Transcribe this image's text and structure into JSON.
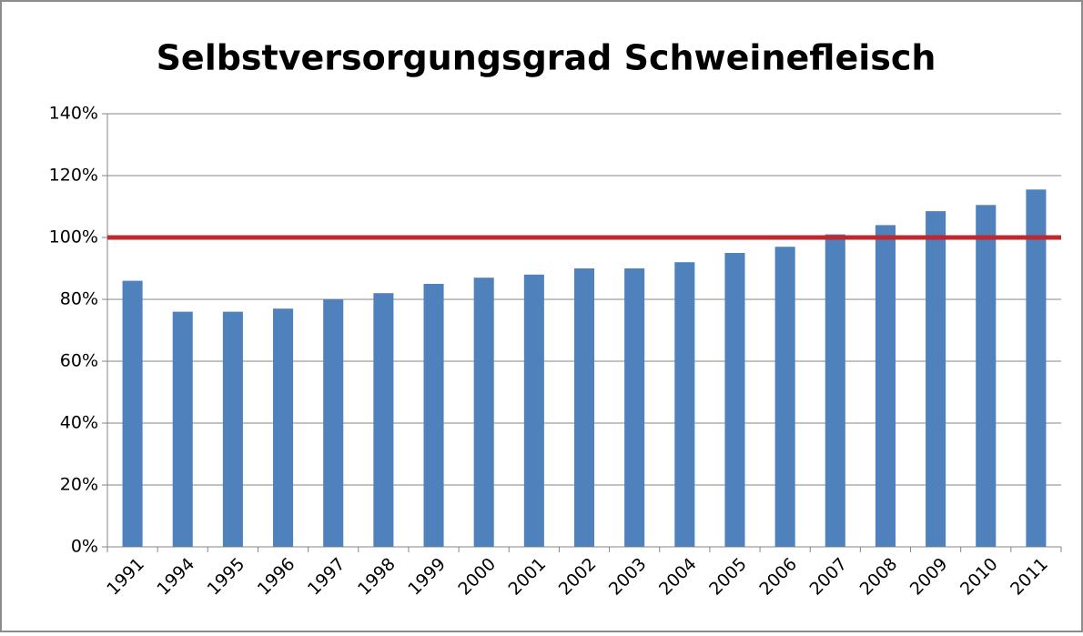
{
  "chart_data": {
    "type": "bar",
    "title": "Selbstversorgungsgrad Schweinefleisch",
    "categories": [
      "1991",
      "1994",
      "1995",
      "1996",
      "1997",
      "1998",
      "1999",
      "2000",
      "2001",
      "2002",
      "2003",
      "2004",
      "2005",
      "2006",
      "2007",
      "2008",
      "2009",
      "2010",
      "2011"
    ],
    "values": [
      86,
      76,
      76,
      77,
      80,
      82,
      85,
      87,
      88,
      90,
      90,
      92,
      95,
      97,
      101,
      104,
      108.5,
      110.5,
      115.5
    ],
    "color": "#4f81bd",
    "ylim": [
      0,
      140
    ],
    "yticks": [
      {
        "value": 0,
        "label": "0%"
      },
      {
        "value": 20,
        "label": "20%"
      },
      {
        "value": 40,
        "label": "40%"
      },
      {
        "value": 60,
        "label": "60%"
      },
      {
        "value": 80,
        "label": "80%"
      },
      {
        "value": 100,
        "label": "100%"
      },
      {
        "value": 120,
        "label": "120%"
      },
      {
        "value": 140,
        "label": "140%"
      }
    ],
    "grid": true,
    "reference_line": {
      "value": 100,
      "color": "#c0282d"
    }
  }
}
